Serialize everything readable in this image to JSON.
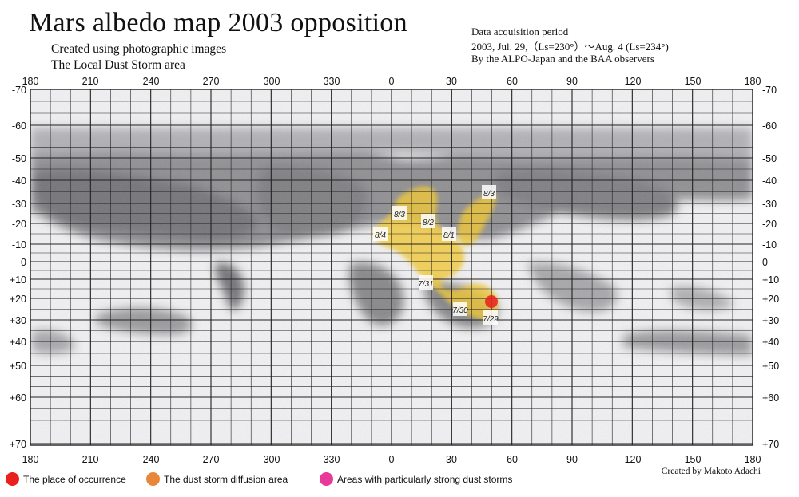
{
  "title": "Mars albedo map 2003 opposition",
  "subtitle_1": "Created using photographic images",
  "subtitle_2": "The Local Dust Storm area",
  "info": {
    "line_1": "Data acquisition period",
    "line_2": "2003, Jul. 29,（Ls=230°）～Aug. 4 (Ls=234°)",
    "line_3": "By the ALPO-Japan and the BAA observers"
  },
  "credit": "Created by Makoto Adachi",
  "longitude_labels": [
    "180",
    "210",
    "240",
    "270",
    "300",
    "330",
    "0",
    "30",
    "60",
    "90",
    "120",
    "150",
    "180"
  ],
  "latitude_labels": [
    "-70",
    "-60",
    "-50",
    "-40",
    "-30",
    "-20",
    "-10",
    "0",
    "+10",
    "+20",
    "+30",
    "+40",
    "+50",
    "+60",
    "+70"
  ],
  "date_labels": [
    "8/3",
    "8/3",
    "8/2",
    "8/1",
    "8/4",
    "7/31",
    "7/30",
    "7/29"
  ],
  "legend": [
    {
      "label": "The place of occurrence",
      "color": "#e8201e"
    },
    {
      "label": "The dust storm diffusion area",
      "color": "#e8873a"
    },
    {
      "label": "Areas with particularly strong dust storms",
      "color": "#e8399a"
    }
  ],
  "colors": {
    "dust_storm": "#eec73a",
    "occurrence_point": "#e8201e",
    "grid": "#222222"
  }
}
